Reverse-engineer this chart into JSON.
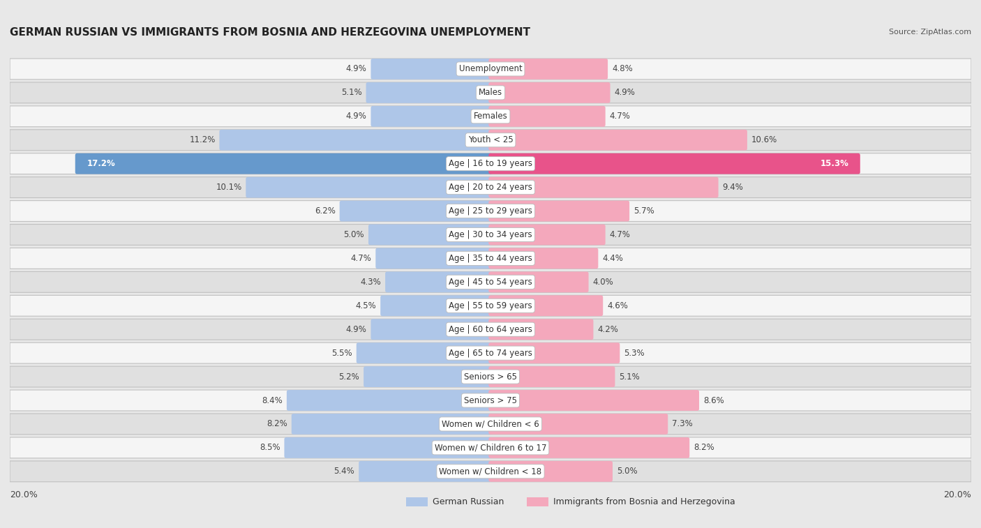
{
  "title": "GERMAN RUSSIAN VS IMMIGRANTS FROM BOSNIA AND HERZEGOVINA UNEMPLOYMENT",
  "source": "Source: ZipAtlas.com",
  "categories": [
    "Unemployment",
    "Males",
    "Females",
    "Youth < 25",
    "Age | 16 to 19 years",
    "Age | 20 to 24 years",
    "Age | 25 to 29 years",
    "Age | 30 to 34 years",
    "Age | 35 to 44 years",
    "Age | 45 to 54 years",
    "Age | 55 to 59 years",
    "Age | 60 to 64 years",
    "Age | 65 to 74 years",
    "Seniors > 65",
    "Seniors > 75",
    "Women w/ Children < 6",
    "Women w/ Children 6 to 17",
    "Women w/ Children < 18"
  ],
  "left_values": [
    4.9,
    5.1,
    4.9,
    11.2,
    17.2,
    10.1,
    6.2,
    5.0,
    4.7,
    4.3,
    4.5,
    4.9,
    5.5,
    5.2,
    8.4,
    8.2,
    8.5,
    5.4
  ],
  "right_values": [
    4.8,
    4.9,
    4.7,
    10.6,
    15.3,
    9.4,
    5.7,
    4.7,
    4.4,
    4.0,
    4.6,
    4.2,
    5.3,
    5.1,
    8.6,
    7.3,
    8.2,
    5.0
  ],
  "left_color": "#aec6e8",
  "right_color": "#f4a8bc",
  "left_label": "German Russian",
  "right_label": "Immigrants from Bosnia and Herzegovina",
  "highlight_left_color": "#6699cc",
  "highlight_right_color": "#e8538a",
  "highlight_row": 4,
  "axis_max": 20.0,
  "bg_color": "#e8e8e8",
  "row_bg_light": "#f5f5f5",
  "row_bg_dark": "#e0e0e0",
  "title_fontsize": 11,
  "label_fontsize": 8.5,
  "value_fontsize": 8.5,
  "source_fontsize": 8
}
